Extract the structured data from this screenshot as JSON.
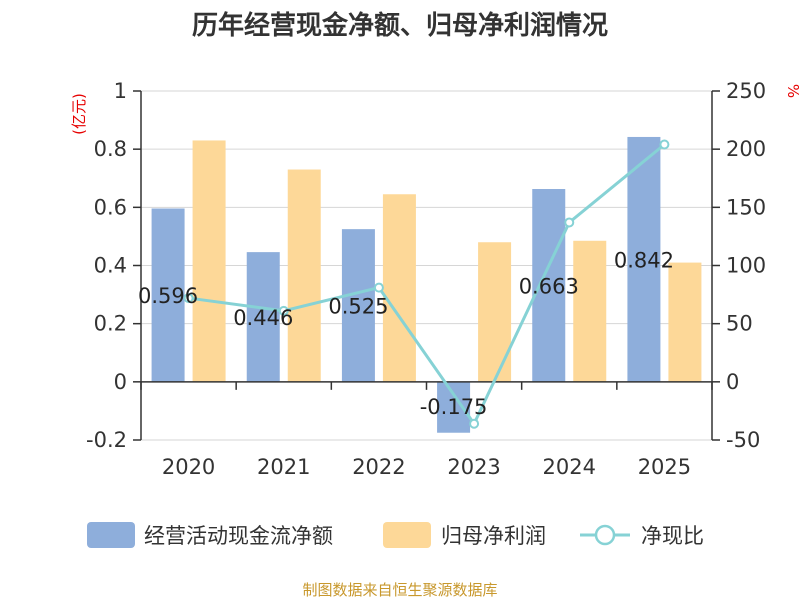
{
  "chart_data": {
    "type": "bar+line",
    "title": "历年经营现金净额、归母净利润情况",
    "categories": [
      "2020",
      "2021",
      "2022",
      "2023",
      "2024",
      "2025"
    ],
    "series": [
      {
        "name": "经营活动现金流净额",
        "type": "bar",
        "axis": "left",
        "color": "#8eaedb",
        "values": [
          0.596,
          0.446,
          0.525,
          -0.175,
          0.663,
          0.842
        ],
        "labels": [
          "0.596",
          "0.446",
          "0.525",
          "-0.175",
          "0.663",
          "0.842"
        ]
      },
      {
        "name": "归母净利润",
        "type": "bar",
        "axis": "left",
        "color": "#fdd898",
        "values": [
          0.83,
          0.73,
          0.645,
          0.48,
          0.485,
          0.41
        ]
      },
      {
        "name": "净现比",
        "type": "line",
        "axis": "right",
        "color": "#86d2d5",
        "values": [
          72,
          61,
          81,
          -36,
          137,
          204
        ]
      }
    ],
    "left_axis": {
      "unit": "(亿元)",
      "min": -0.2,
      "max": 1,
      "ticks": [
        "-0.2",
        "0",
        "0.2",
        "0.4",
        "0.6",
        "0.8",
        "1"
      ]
    },
    "right_axis": {
      "unit": "%",
      "min": -50,
      "max": 250,
      "ticks": [
        "-50",
        "0",
        "50",
        "100",
        "150",
        "200",
        "250"
      ]
    },
    "grid": true,
    "legend_position": "bottom"
  },
  "source": "制图数据来自恒生聚源数据库"
}
